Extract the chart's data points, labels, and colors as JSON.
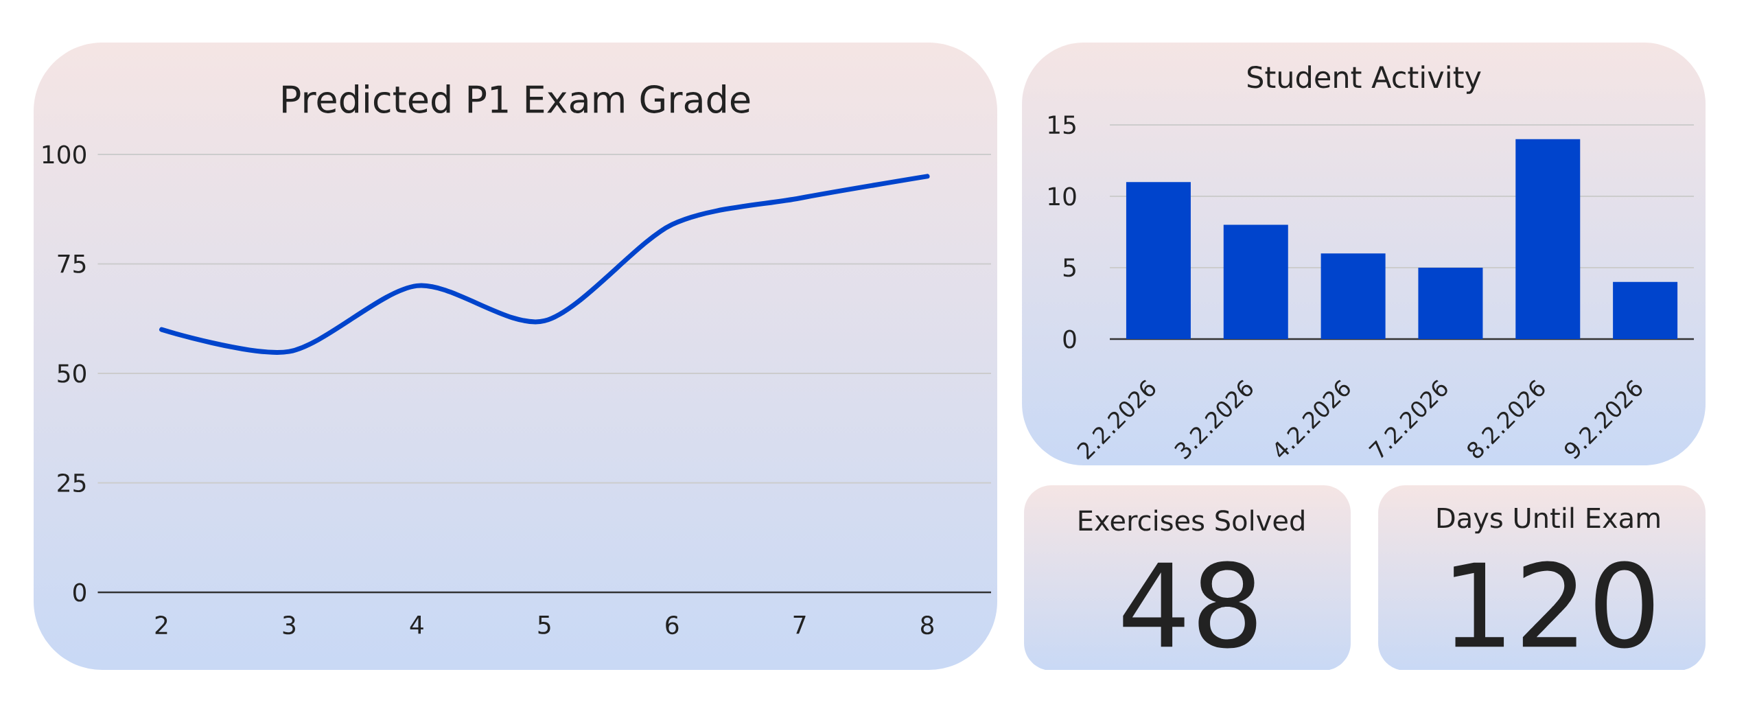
{
  "chart_data": [
    {
      "type": "line",
      "title": "Predicted P1 Exam Grade",
      "categories": [
        "2",
        "3",
        "4",
        "5",
        "6",
        "7",
        "8"
      ],
      "values": [
        60,
        55,
        70,
        62,
        84,
        90,
        95
      ],
      "color": "#0044cc",
      "ylim": [
        0,
        100
      ],
      "yticks": [
        0,
        25,
        50,
        75,
        100
      ],
      "grid": "y"
    },
    {
      "type": "bar",
      "title": "Student Activity",
      "categories": [
        "2.2.2026",
        "3.2.2026",
        "4.2.2026",
        "7.2.2026",
        "8.2.2026",
        "9.2.2026"
      ],
      "values": [
        11,
        8,
        6,
        5,
        14,
        4
      ],
      "color": "#0044cc",
      "ylim": [
        0,
        15
      ],
      "yticks": [
        0,
        5,
        10,
        15
      ],
      "grid": "y"
    },
    {
      "type": "other",
      "title": "Exercises Solved",
      "annotations": [
        "48"
      ]
    },
    {
      "type": "other",
      "title": "Days Until Exam",
      "annotations": [
        "120"
      ]
    }
  ]
}
